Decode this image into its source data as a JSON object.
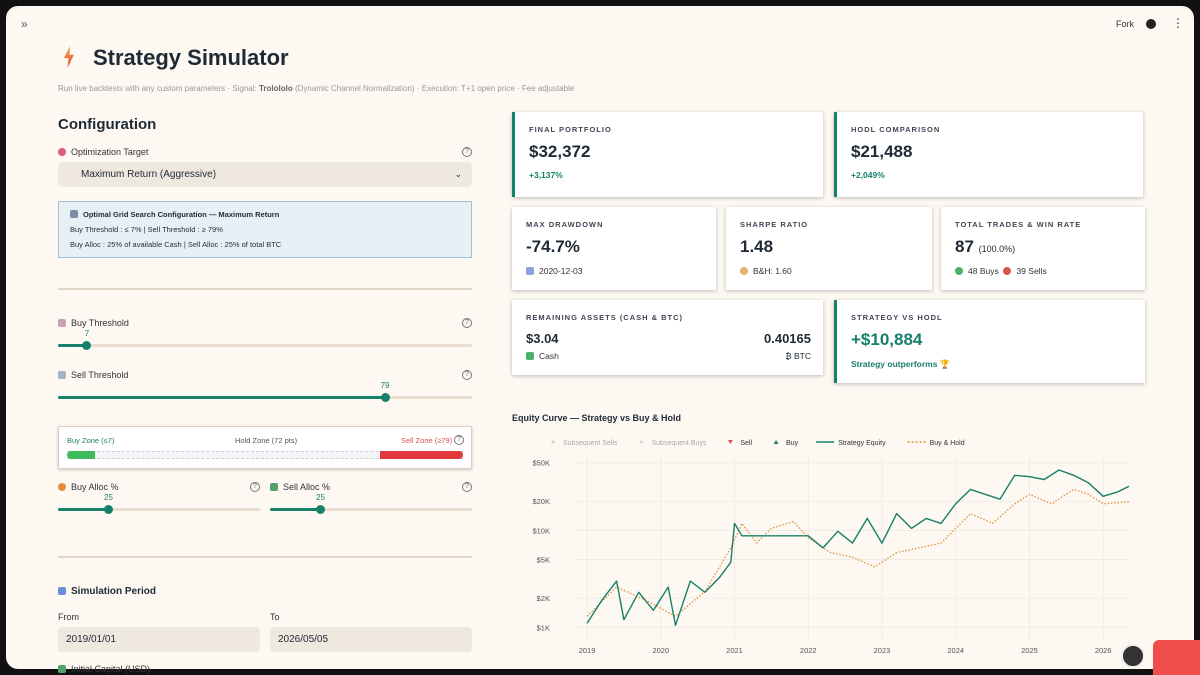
{
  "header": {
    "fork": "Fork"
  },
  "page": {
    "title": "Strategy Simulator",
    "subtitle": [
      "Run live backtests with any custom parameters · Signal: ",
      "Trolololo",
      " (Dynamic Channel Normalization) · Execution: T+1 open price · Fee adjustable"
    ]
  },
  "config": {
    "title": "Configuration",
    "target_label": "Optimization Target",
    "target_value": "Maximum Return (Aggressive)",
    "info": {
      "title": "Optimal Grid Search Configuration — Maximum Return",
      "line1": "Buy Threshold : ≤ 7% | Sell Threshold : ≥ 79%",
      "line2": "Buy Alloc : 25% of available Cash | Sell Alloc : 25% of total BTC"
    },
    "buy_threshold": {
      "label": "Buy Threshold",
      "value": 7
    },
    "sell_threshold": {
      "label": "Sell Threshold",
      "value": 79
    },
    "zones": {
      "buy": "Buy Zone (≤7)",
      "hold": "Hold Zone (72 pts)",
      "sell": "Sell Zone (≥79)"
    },
    "buy_alloc": {
      "label": "Buy Alloc %",
      "value": 25
    },
    "sell_alloc": {
      "label": "Sell Alloc %",
      "value": 25
    },
    "period": {
      "title": "Simulation Period",
      "from_label": "From",
      "from": "2019/01/01",
      "to_label": "To",
      "to": "2026/05/05",
      "capital_label": "Initial Capital (USD)"
    }
  },
  "metrics": {
    "final_portfolio": {
      "label": "FINAL PORTFOLIO",
      "value": "$32,372",
      "change": "+3,137%"
    },
    "hodl": {
      "label": "HODL COMPARISON",
      "value": "$21,488",
      "change": "+2,049%"
    },
    "max_drawdown": {
      "label": "MAX DRAWDOWN",
      "value": "-74.7%",
      "date": "2020-12-03"
    },
    "sharpe": {
      "label": "SHARPE RATIO",
      "value": "1.48",
      "benchmark": "B&H: 1.60"
    },
    "trades": {
      "label": "TOTAL TRADES & WIN RATE",
      "value": "87",
      "win_rate": "(100.0%)",
      "buys": "48 Buys",
      "sells": "39 Sells"
    },
    "remaining": {
      "label": "REMAINING ASSETS (CASH & BTC)",
      "cash": "$3.04",
      "cash_label": "Cash",
      "btc": "0.40165",
      "btc_label": "₿ BTC"
    },
    "vs_hodl": {
      "label": "STRATEGY VS HODL",
      "value": "+$10,884",
      "note": "Strategy outperforms 🏆"
    }
  },
  "chart_data": {
    "type": "line",
    "title": "Equity Curve — Strategy vs Buy & Hold",
    "log_y": true,
    "grid": true,
    "ylim": [
      740,
      60000
    ],
    "yticks": [
      {
        "value": 1000,
        "label": "$1K"
      },
      {
        "value": 2000,
        "label": "$2K"
      },
      {
        "value": 5000,
        "label": "$5K"
      },
      {
        "value": 10000,
        "label": "$10K"
      },
      {
        "value": 20000,
        "label": "$20K"
      },
      {
        "value": 50000,
        "label": "$50K"
      }
    ],
    "xlim": [
      2018.85,
      2026.35
    ],
    "xticks": [
      2019,
      2020,
      2021,
      2022,
      2023,
      2024,
      2025,
      2026
    ],
    "marker_legend": [
      {
        "name": "Subsequent Sells",
        "color": "#e3cfc6",
        "shape": "dot"
      },
      {
        "name": "Subsequent Buys",
        "color": "#cfe3da",
        "shape": "dot"
      },
      {
        "name": "Sell",
        "color": "#d9534f",
        "shape": "down"
      },
      {
        "name": "Buy",
        "color": "#17806b",
        "shape": "up"
      }
    ],
    "series": [
      {
        "name": "Strategy Equity",
        "color": "#17806b",
        "style": "solid",
        "x": [
          2019.0,
          2019.2,
          2019.4,
          2019.5,
          2019.7,
          2019.9,
          2020.1,
          2020.2,
          2020.4,
          2020.6,
          2020.8,
          2020.95,
          2021.0,
          2021.1,
          2021.9,
          2022.0,
          2022.2,
          2022.4,
          2022.6,
          2022.8,
          2023.0,
          2023.2,
          2023.4,
          2023.6,
          2023.8,
          2024.0,
          2024.2,
          2024.4,
          2024.6,
          2024.8,
          2025.0,
          2025.2,
          2025.4,
          2025.6,
          2025.8,
          2026.0,
          2026.2,
          2026.35
        ],
        "values": [
          1100,
          1900,
          3000,
          1200,
          2300,
          1500,
          2600,
          1050,
          3000,
          2300,
          3300,
          4700,
          11800,
          8800,
          8800,
          8800,
          6600,
          9800,
          7400,
          13300,
          7400,
          14900,
          10500,
          13300,
          11800,
          18800,
          26500,
          23600,
          21000,
          37000,
          35800,
          33500,
          42000,
          37000,
          31000,
          22500,
          25000,
          28500
        ]
      },
      {
        "name": "Buy & Hold",
        "color": "#e0913f",
        "style": "dotted",
        "x": [
          2019.0,
          2019.4,
          2019.8,
          2020.2,
          2020.6,
          2020.95,
          2021.1,
          2021.3,
          2021.5,
          2021.8,
          2022.0,
          2022.3,
          2022.6,
          2022.9,
          2023.2,
          2023.5,
          2023.8,
          2024.0,
          2024.2,
          2024.5,
          2024.8,
          2025.0,
          2025.3,
          2025.6,
          2025.8,
          2026.0,
          2026.35
        ],
        "values": [
          1300,
          2600,
          1900,
          1300,
          2350,
          6600,
          11800,
          7400,
          10500,
          12400,
          8400,
          5900,
          5300,
          4200,
          5900,
          6600,
          7400,
          10500,
          14900,
          11800,
          18800,
          23600,
          18800,
          26500,
          23600,
          18800,
          19700
        ]
      }
    ]
  }
}
